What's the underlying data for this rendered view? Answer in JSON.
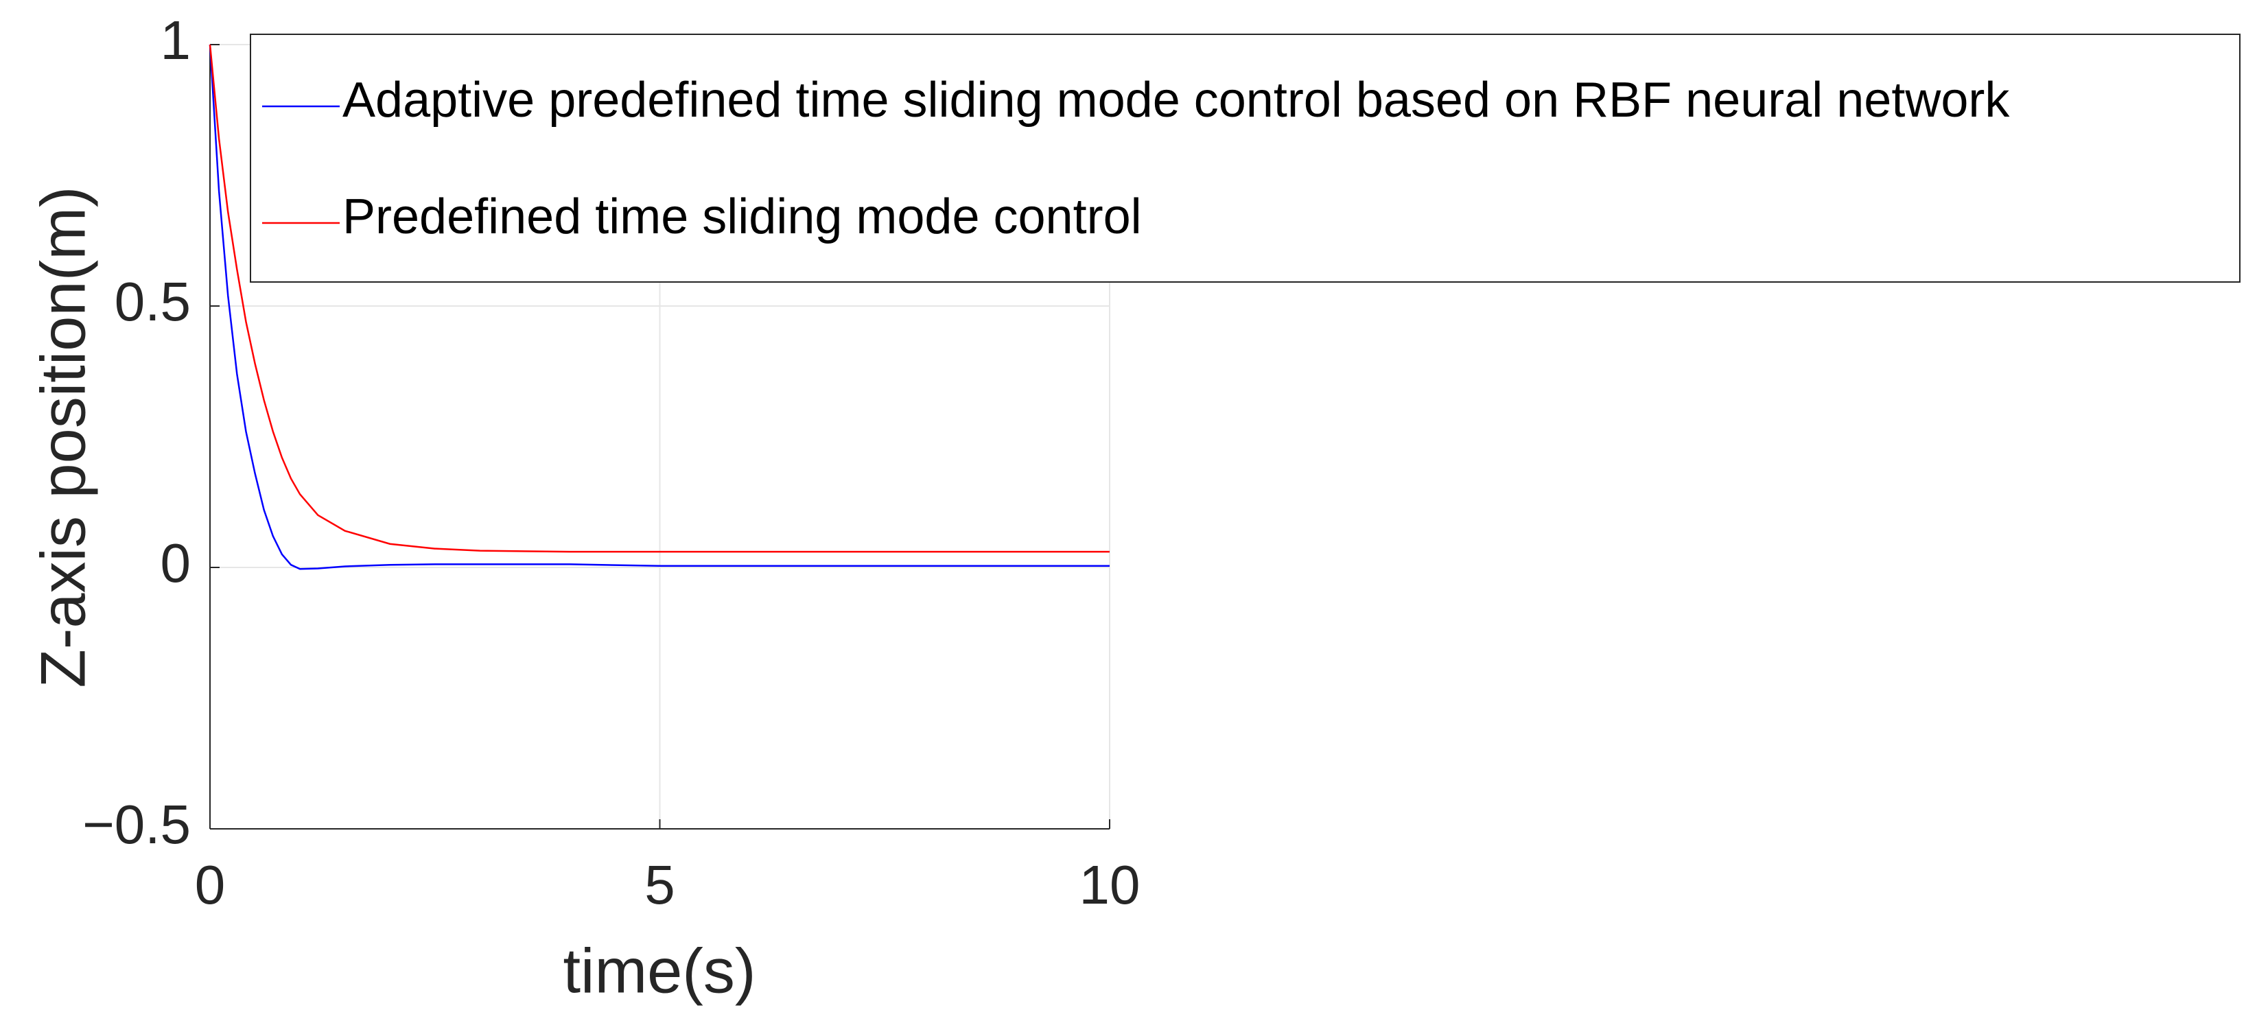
{
  "chart_data": {
    "type": "line",
    "xlabel": "time(s)",
    "ylabel": "Z-axis position(m)",
    "x": [
      0,
      0.1,
      0.2,
      0.3,
      0.4,
      0.5,
      0.6,
      0.7,
      0.8,
      0.9,
      1,
      1.2,
      1.5,
      2,
      2.5,
      3,
      4,
      5,
      6,
      7,
      8,
      9,
      10
    ],
    "series": [
      {
        "name": "Adaptive predefined time sliding mode control based on RBF neural network",
        "color": "#0000ff",
        "values": [
          1,
          0.72,
          0.52,
          0.37,
          0.26,
          0.18,
          0.11,
          0.06,
          0.025,
          0.005,
          -0.003,
          -0.002,
          0.002,
          0.005,
          0.006,
          0.006,
          0.006,
          0.003,
          0.003,
          0.003,
          0.003,
          0.003,
          0.003
        ]
      },
      {
        "name": "Predefined time sliding mode control",
        "color": "#ff0000",
        "values": [
          1,
          0.82,
          0.68,
          0.57,
          0.47,
          0.39,
          0.32,
          0.26,
          0.21,
          0.17,
          0.14,
          0.1,
          0.07,
          0.045,
          0.036,
          0.032,
          0.03,
          0.03,
          0.03,
          0.03,
          0.03,
          0.03,
          0.03
        ]
      }
    ],
    "xlim": [
      0,
      10
    ],
    "xticks": [
      0,
      5,
      10
    ],
    "ylim": [
      -0.5,
      1
    ],
    "yticks": [
      {
        "value": -0.5,
        "label": "−0.5"
      },
      0,
      0.5,
      1
    ],
    "grid": true,
    "legend": "northeast"
  }
}
